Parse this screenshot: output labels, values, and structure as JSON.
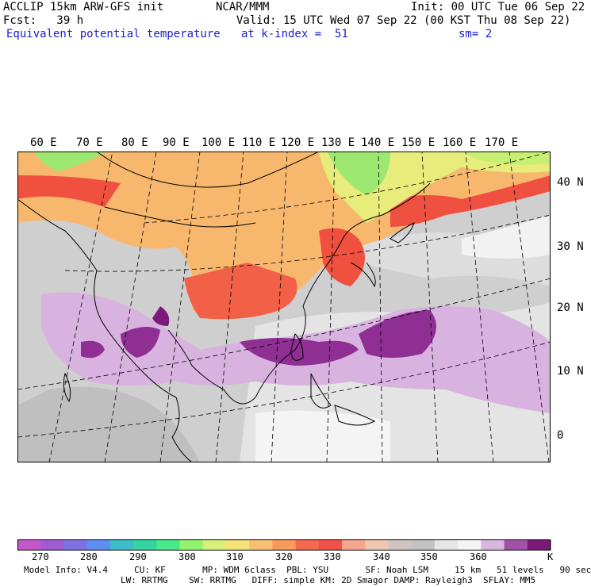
{
  "header": {
    "line1_left": "ACCLIP 15km ARW-GFS init",
    "line1_mid": "NCAR/MMM",
    "line1_right": "Init: 00 UTC Tue 06 Sep 22",
    "line2_left": "Fcst:   39 h",
    "line2_right": "Valid: 15 UTC Wed 07 Sep 22 (00 KST Thu 08 Sep 22)",
    "line3_left": "Equivalent potential temperature",
    "line3_mid": "at k-index =  51",
    "line3_right": "sm= 2"
  },
  "map": {
    "lon_labels": [
      "60 E",
      "70 E",
      "80 E",
      "90 E",
      "100 E",
      "110 E",
      "120 E",
      "130 E",
      "140 E",
      "150 E",
      "160 E",
      "170 E"
    ],
    "lat_labels": [
      "40 N",
      "30 N",
      "20 N",
      "10 N",
      "0"
    ]
  },
  "legend": {
    "colors": [
      "#c558c9",
      "#a05ad4",
      "#7f72e0",
      "#5e8ef2",
      "#3dbdc9",
      "#33d6a0",
      "#48e88b",
      "#94f26e",
      "#d8f07a",
      "#f5e279",
      "#f8c070",
      "#f79a5c",
      "#f56a4e",
      "#f2514a",
      "#f4a58e",
      "#efc7b0",
      "#cfc4be",
      "#c3c3c3",
      "#e6e6e6",
      "#f4f4f4",
      "#d9b6e0",
      "#a152a8",
      "#7c1a7c"
    ],
    "labels": [
      "270",
      "280",
      "290",
      "300",
      "310",
      "320",
      "330",
      "340",
      "350",
      "360",
      "K"
    ]
  },
  "footer": {
    "line1": "Model Info: V4.4     CU: KF       MP: WDM 6class  PBL: YSU       SF: Noah LSM     15 km   51 levels   90 sec",
    "line2": "LW: RRTMG    SW: RRTMG   DIFF: simple KM: 2D Smagor DAMP: Rayleigh3  SFLAY: MM5"
  }
}
